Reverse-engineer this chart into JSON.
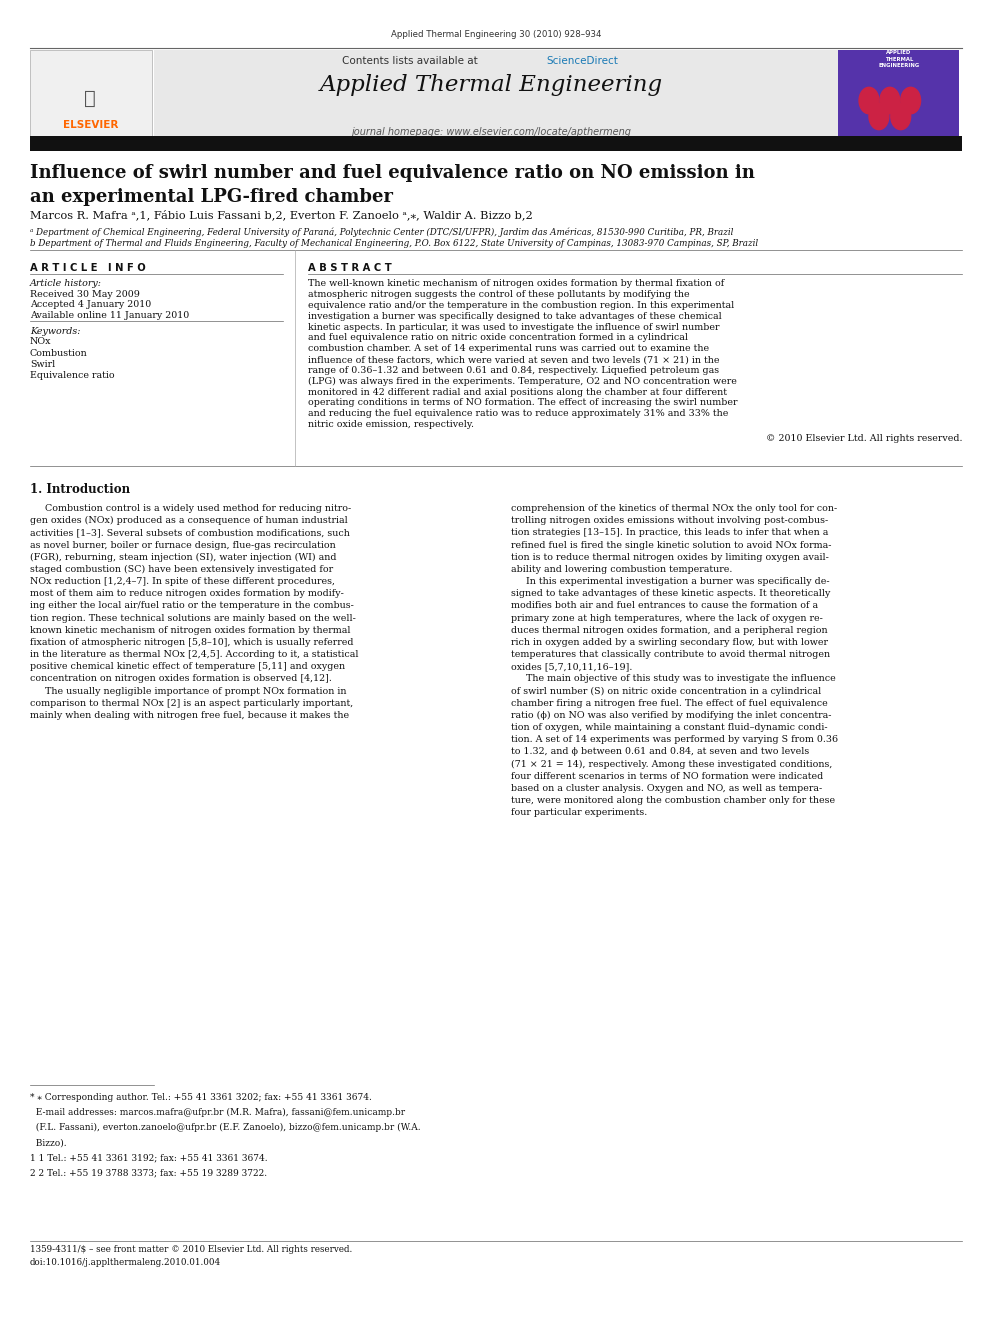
{
  "page_width": 9.92,
  "page_height": 13.23,
  "dpi": 100,
  "background_color": "#ffffff",
  "journal_ref": "Applied Thermal Engineering 30 (2010) 928–934",
  "header_bg": "#e8e8e8",
  "header_text_plain": "Contents lists available at ",
  "header_text_blue": "ScienceDirect",
  "journal_name": "Applied Thermal Engineering",
  "journal_homepage": "journal homepage: www.elsevier.com/locate/apthermeng",
  "elsevier_color": "#ff6600",
  "sciencedirect_color": "#1a7ab5",
  "title_line1": "Influence of swirl number and fuel equivalence ratio on NO emission in",
  "title_line2": "an experimental LPG-fired chamber",
  "authors": "Marcos R. Mafra ᵃ,1, Fábio Luis Fassani b,2, Everton F. Zanoelo ᵃ,⁎, Waldir A. Bizzo b,2",
  "affil_a": "ᵃ Department of Chemical Engineering, Federal University of Paraná, Polytechnic Center (DTC/SI/UFPR), Jardim das Américas, 81530-990 Curitiba, PR, Brazil",
  "affil_b": "b Department of Thermal and Fluids Engineering, Faculty of Mechanical Engineering, P.O. Box 6122, State University of Campinas, 13083-970 Campinas, SP, Brazil",
  "article_info_title": "A R T I C L E   I N F O",
  "abstract_title": "A B S T R A C T",
  "article_history_label": "Article history:",
  "received": "Received 30 May 2009",
  "accepted": "Accepted 4 January 2010",
  "available": "Available online 11 January 2010",
  "keywords_label": "Keywords:",
  "keywords": [
    "NOx",
    "Combustion",
    "Swirl",
    "Equivalence ratio"
  ],
  "abstract_text": "The well-known kinetic mechanism of nitrogen oxides formation by thermal fixation of atmospheric nitrogen suggests the control of these pollutants by modifying the equivalence ratio and/or the temperature in the combustion region. In this experimental investigation a burner was specifically designed to take advantages of these chemical kinetic aspects. In particular, it was used to investigate the influence of swirl number and fuel equivalence ratio on nitric oxide concentration formed in a cylindrical combustion chamber. A set of 14 experimental runs was carried out to examine the influence of these factors, which were varied at seven and two levels (71 × 21) in the range of 0.36–1.32 and between 0.61 and 0.84, respectively. Liquefied petroleum gas (LPG) was always fired in the experiments. Temperature, O2 and NO concentration were monitored in 42 different radial and axial positions along the chamber at four different operating conditions in terms of NO formation. The effect of increasing the swirl number and reducing the fuel equivalence ratio was to reduce approximately 31% and 33% the nitric oxide emission, respectively.",
  "copyright": "© 2010 Elsevier Ltd. All rights reserved.",
  "intro_title": "1. Introduction",
  "intro_col1_lines": [
    "     Combustion control is a widely used method for reducing nitro-",
    "gen oxides (NOx) produced as a consequence of human industrial",
    "activities [1–3]. Several subsets of combustion modifications, such",
    "as novel burner, boiler or furnace design, flue-gas recirculation",
    "(FGR), reburning, steam injection (SI), water injection (WI) and",
    "staged combustion (SC) have been extensively investigated for",
    "NOx reduction [1,2,4–7]. In spite of these different procedures,",
    "most of them aim to reduce nitrogen oxides formation by modify-",
    "ing either the local air/fuel ratio or the temperature in the combus-",
    "tion region. These technical solutions are mainly based on the well-",
    "known kinetic mechanism of nitrogen oxides formation by thermal",
    "fixation of atmospheric nitrogen [5,8–10], which is usually referred",
    "in the literature as thermal NOx [2,4,5]. According to it, a statistical",
    "positive chemical kinetic effect of temperature [5,11] and oxygen",
    "concentration on nitrogen oxides formation is observed [4,12].",
    "     The usually negligible importance of prompt NOx formation in",
    "comparison to thermal NOx [2] is an aspect particularly important,",
    "mainly when dealing with nitrogen free fuel, because it makes the"
  ],
  "intro_col2_lines": [
    "comprehension of the kinetics of thermal NOx the only tool for con-",
    "trolling nitrogen oxides emissions without involving post-combus-",
    "tion strategies [13–15]. In practice, this leads to infer that when a",
    "refined fuel is fired the single kinetic solution to avoid NOx forma-",
    "tion is to reduce thermal nitrogen oxides by limiting oxygen avail-",
    "ability and lowering combustion temperature.",
    "     In this experimental investigation a burner was specifically de-",
    "signed to take advantages of these kinetic aspects. It theoretically",
    "modifies both air and fuel entrances to cause the formation of a",
    "primary zone at high temperatures, where the lack of oxygen re-",
    "duces thermal nitrogen oxides formation, and a peripheral region",
    "rich in oxygen added by a swirling secondary flow, but with lower",
    "temperatures that classically contribute to avoid thermal nitrogen",
    "oxides [5,7,10,11,16–19].",
    "     The main objective of this study was to investigate the influence",
    "of swirl number (S) on nitric oxide concentration in a cylindrical",
    "chamber firing a nitrogen free fuel. The effect of fuel equivalence",
    "ratio (ϕ) on NO was also verified by modifying the inlet concentra-",
    "tion of oxygen, while maintaining a constant fluid–dynamic condi-",
    "tion. A set of 14 experiments was performed by varying S from 0.36",
    "to 1.32, and ϕ between 0.61 and 0.84, at seven and two levels",
    "(71 × 21 = 14), respectively. Among these investigated conditions,",
    "four different scenarios in terms of NO formation were indicated",
    "based on a cluster analysis. Oxygen and NO, as well as tempera-",
    "ture, were monitored along the combustion chamber only for these",
    "four particular experiments."
  ],
  "footnote_star": "⁎ Corresponding author. Tel.: +55 41 3361 3202; fax: +55 41 3361 3674.",
  "footnote_email_1": "E-mail addresses: marcos.mafra@ufpr.br (M.R. Mafra), fassani@fem.unicamp.br",
  "footnote_email_2": "(F.L. Fassani), everton.zanoelo@ufpr.br (E.F. Zanoelo), bizzo@fem.unicamp.br (W.A.",
  "footnote_email_3": "Bizzo).",
  "footnote_1": "1 Tel.: +55 41 3361 3192; fax: +55 41 3361 3674.",
  "footnote_2": "2 Tel.: +55 19 3788 3373; fax: +55 19 3289 3722.",
  "bottom_left_1": "1359-4311/$ – see front matter © 2010 Elsevier Ltd. All rights reserved.",
  "bottom_left_2": "doi:10.1016/j.applthermaleng.2010.01.004"
}
